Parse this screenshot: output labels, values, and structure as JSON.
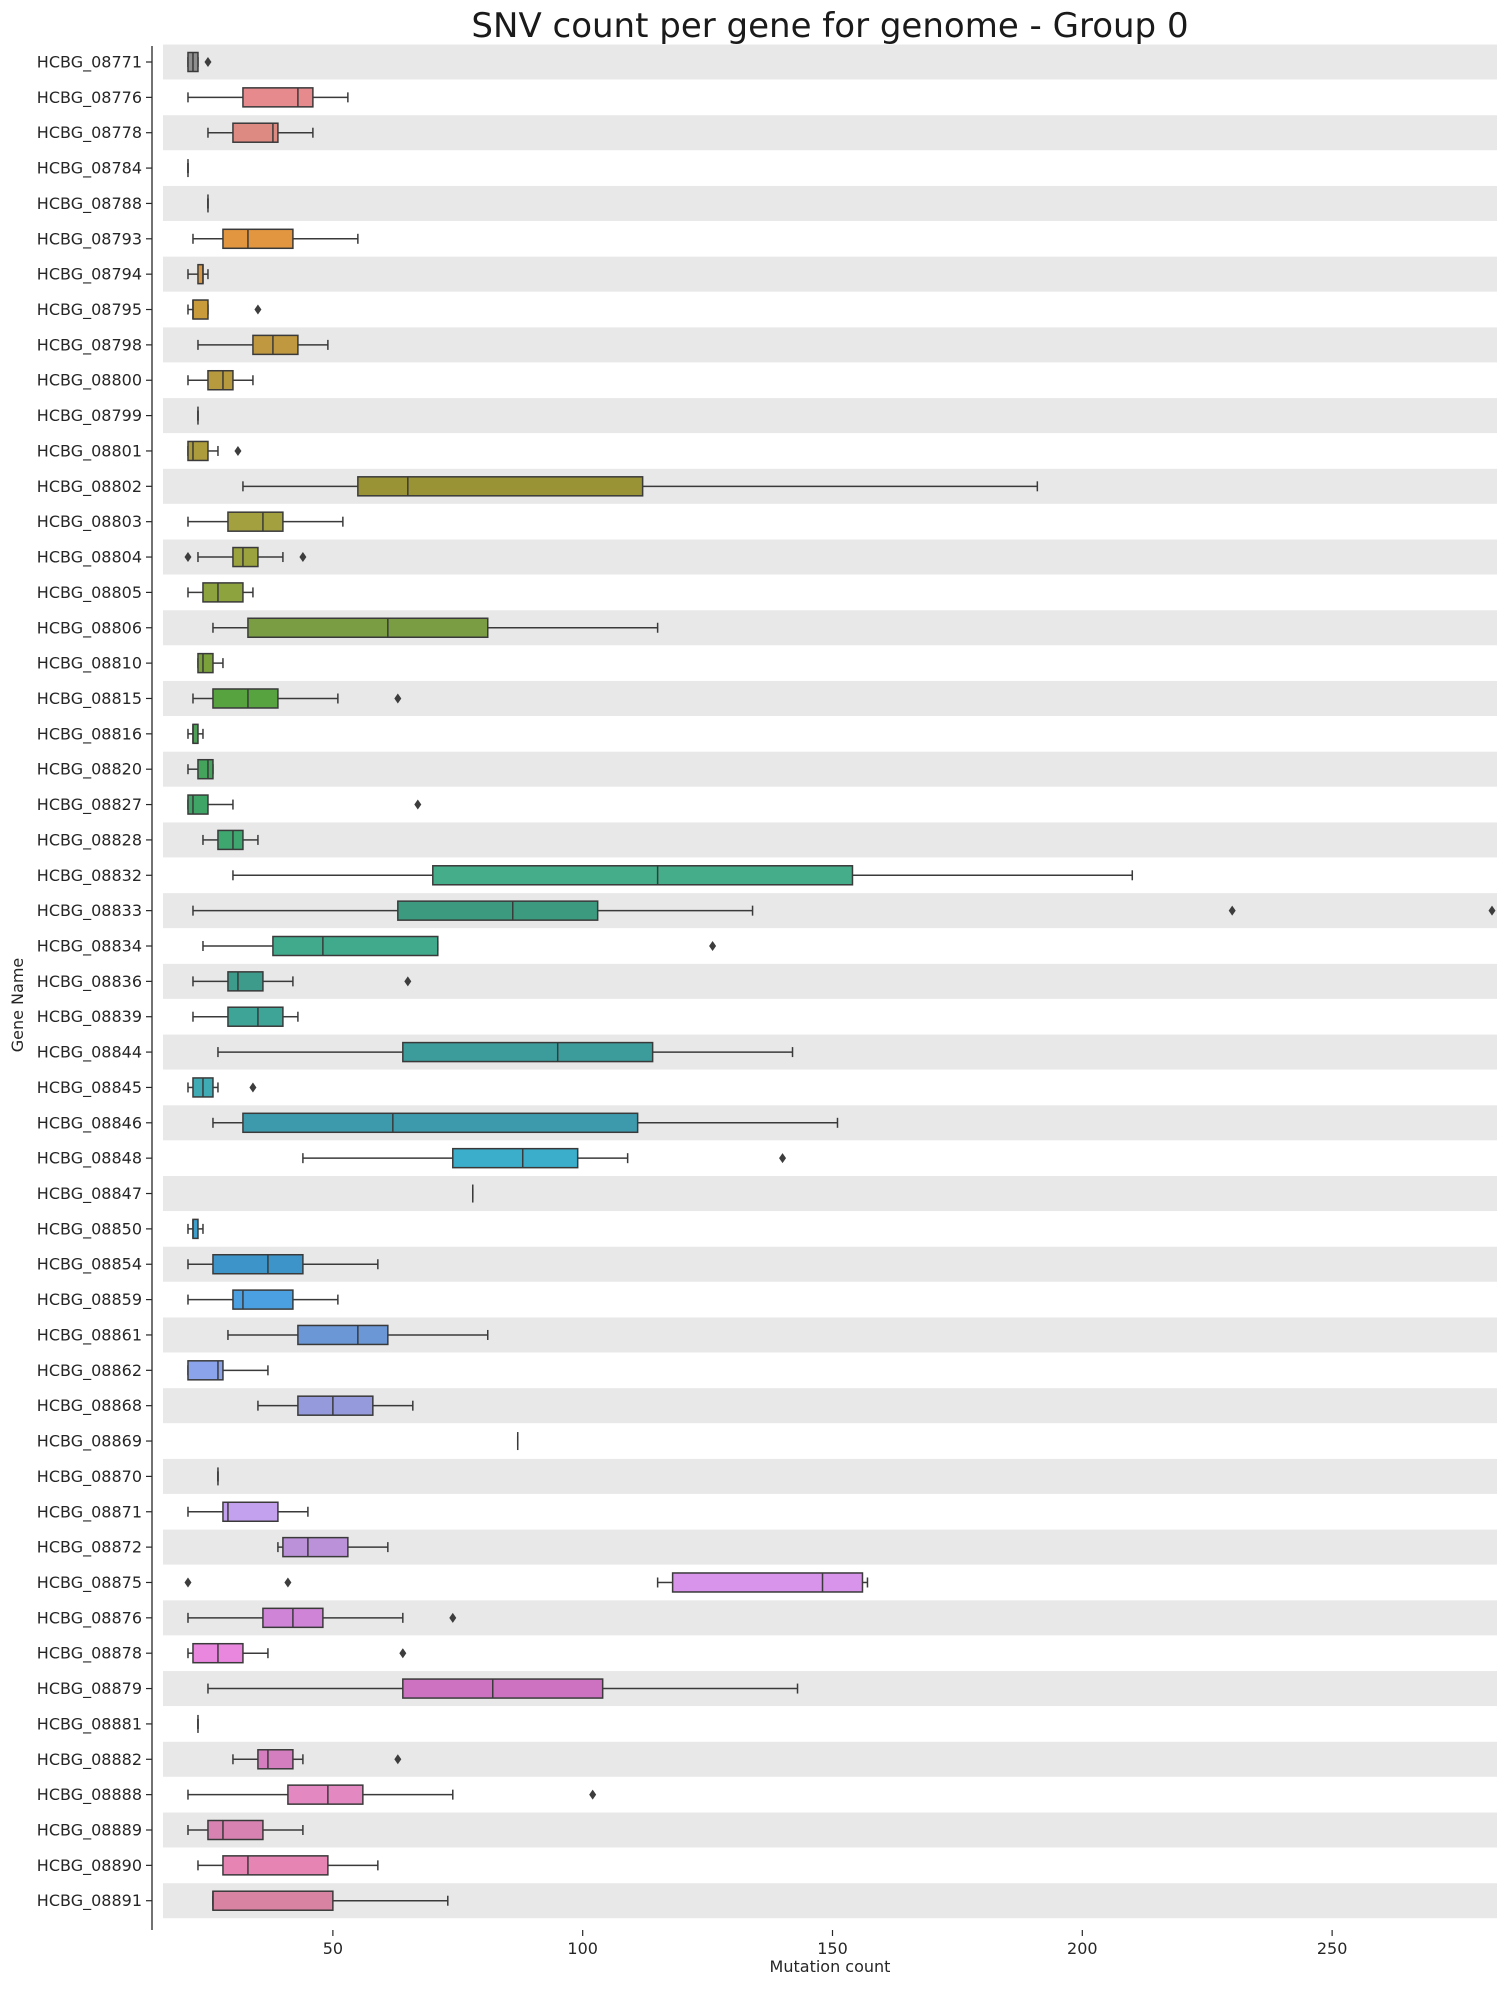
{
  "chart_data": {
    "type": "boxplot",
    "orientation": "horizontal",
    "title": "SNV count per gene for genome - Group 0",
    "xlabel": "Mutation count",
    "ylabel": "Gene Name",
    "xlim": [
      16,
      283
    ],
    "xticks": [
      50,
      100,
      150,
      200,
      250
    ],
    "row_stripes": true,
    "genes": [
      {
        "name": "HCBG_08771",
        "min": 21,
        "q1": 21,
        "median": 22,
        "q3": 23,
        "max": 23,
        "outliers": [
          25
        ],
        "color": "#8f8f8f"
      },
      {
        "name": "HCBG_08776",
        "min": 21,
        "q1": 32,
        "median": 43,
        "q3": 46,
        "max": 53,
        "outliers": [],
        "color": "#e78a8e"
      },
      {
        "name": "HCBG_08778",
        "min": 25,
        "q1": 30,
        "median": 38,
        "q3": 39,
        "max": 46,
        "outliers": [],
        "color": "#dc8a82"
      },
      {
        "name": "HCBG_08784",
        "min": 21,
        "q1": 21,
        "median": 21,
        "q3": 21,
        "max": 21,
        "outliers": [],
        "color": "#d68a7a"
      },
      {
        "name": "HCBG_08788",
        "min": 25,
        "q1": 25,
        "median": 25,
        "q3": 25,
        "max": 25,
        "outliers": [],
        "color": "#d88f69"
      },
      {
        "name": "HCBG_08793",
        "min": 22,
        "q1": 28,
        "median": 33,
        "q3": 42,
        "max": 55,
        "outliers": [],
        "color": "#e29640"
      },
      {
        "name": "HCBG_08794",
        "min": 21,
        "q1": 23,
        "median": 24,
        "q3": 24,
        "max": 25,
        "outliers": [],
        "color": "#d7963f"
      },
      {
        "name": "HCBG_08795",
        "min": 21,
        "q1": 22,
        "median": 22,
        "q3": 25,
        "max": 25,
        "outliers": [
          35
        ],
        "color": "#c99b3a"
      },
      {
        "name": "HCBG_08798",
        "min": 23,
        "q1": 34,
        "median": 38,
        "q3": 43,
        "max": 49,
        "outliers": [],
        "color": "#bf9840"
      },
      {
        "name": "HCBG_08800",
        "min": 21,
        "q1": 25,
        "median": 28,
        "q3": 30,
        "max": 34,
        "outliers": [],
        "color": "#b79a3e"
      },
      {
        "name": "HCBG_08799",
        "min": 23,
        "q1": 23,
        "median": 23,
        "q3": 23,
        "max": 23,
        "outliers": [],
        "color": "#b09b3b"
      },
      {
        "name": "HCBG_08801",
        "min": 21,
        "q1": 21,
        "median": 22,
        "q3": 25,
        "max": 27,
        "outliers": [
          31
        ],
        "color": "#ad9c3b"
      },
      {
        "name": "HCBG_08802",
        "min": 32,
        "q1": 55,
        "median": 65,
        "q3": 112,
        "max": 191,
        "outliers": [],
        "color": "#999336"
      },
      {
        "name": "HCBG_08803",
        "min": 21,
        "q1": 29,
        "median": 36,
        "q3": 40,
        "max": 52,
        "outliers": [],
        "color": "#a3a13f"
      },
      {
        "name": "HCBG_08804",
        "min": 23,
        "q1": 30,
        "median": 32,
        "q3": 35,
        "max": 40,
        "outliers": [
          21,
          44
        ],
        "color": "#9aa33e"
      },
      {
        "name": "HCBG_08805",
        "min": 21,
        "q1": 24,
        "median": 27,
        "q3": 32,
        "max": 34,
        "outliers": [],
        "color": "#8ca33e"
      },
      {
        "name": "HCBG_08806",
        "min": 26,
        "q1": 33,
        "median": 61,
        "q3": 81,
        "max": 115,
        "outliers": [],
        "color": "#7a9c42"
      },
      {
        "name": "HCBG_08810",
        "min": 23,
        "q1": 23,
        "median": 24,
        "q3": 26,
        "max": 28,
        "outliers": [],
        "color": "#7ba23a"
      },
      {
        "name": "HCBG_08815",
        "min": 22,
        "q1": 26,
        "median": 33,
        "q3": 39,
        "max": 51,
        "outliers": [
          63
        ],
        "color": "#57a33f"
      },
      {
        "name": "HCBG_08816",
        "min": 21,
        "q1": 22,
        "median": 22,
        "q3": 23,
        "max": 24,
        "outliers": [],
        "color": "#4f9f59"
      },
      {
        "name": "HCBG_08820",
        "min": 21,
        "q1": 23,
        "median": 25,
        "q3": 26,
        "max": 26,
        "outliers": [],
        "color": "#45a45c"
      },
      {
        "name": "HCBG_08827",
        "min": 21,
        "q1": 21,
        "median": 22,
        "q3": 25,
        "max": 30,
        "outliers": [
          67
        ],
        "color": "#3fa566"
      },
      {
        "name": "HCBG_08828",
        "min": 24,
        "q1": 27,
        "median": 30,
        "q3": 32,
        "max": 35,
        "outliers": [],
        "color": "#3ea66f"
      },
      {
        "name": "HCBG_08832",
        "min": 30,
        "q1": 70,
        "median": 115,
        "q3": 154,
        "max": 210,
        "outliers": [],
        "color": "#46ad8a"
      },
      {
        "name": "HCBG_08833",
        "min": 22,
        "q1": 63,
        "median": 86,
        "q3": 103,
        "max": 134,
        "outliers": [
          230,
          282
        ],
        "color": "#3c9b7f"
      },
      {
        "name": "HCBG_08834",
        "min": 24,
        "q1": 38,
        "median": 48,
        "q3": 71,
        "max": 71,
        "outliers": [
          126
        ],
        "color": "#41aa8d"
      },
      {
        "name": "HCBG_08836",
        "min": 22,
        "q1": 29,
        "median": 31,
        "q3": 36,
        "max": 42,
        "outliers": [
          65
        ],
        "color": "#3c9b8a"
      },
      {
        "name": "HCBG_08839",
        "min": 22,
        "q1": 29,
        "median": 35,
        "q3": 40,
        "max": 43,
        "outliers": [],
        "color": "#3da497"
      },
      {
        "name": "HCBG_08844",
        "min": 27,
        "q1": 64,
        "median": 95,
        "q3": 114,
        "max": 142,
        "outliers": [],
        "color": "#3c9c9b"
      },
      {
        "name": "HCBG_08845",
        "min": 21,
        "q1": 22,
        "median": 24,
        "q3": 26,
        "max": 27,
        "outliers": [
          34
        ],
        "color": "#3fabb4"
      },
      {
        "name": "HCBG_08846",
        "min": 26,
        "q1": 32,
        "median": 62,
        "q3": 111,
        "max": 151,
        "outliers": [],
        "color": "#3c9aac"
      },
      {
        "name": "HCBG_08848",
        "min": 44,
        "q1": 74,
        "median": 88,
        "q3": 99,
        "max": 109,
        "outliers": [
          140
        ],
        "color": "#3aaecb"
      },
      {
        "name": "HCBG_08847",
        "min": 78,
        "q1": 78,
        "median": 78,
        "q3": 78,
        "max": 78,
        "outliers": [],
        "color": "#3aa9cd"
      },
      {
        "name": "HCBG_08850",
        "min": 21,
        "q1": 22,
        "median": 22,
        "q3": 23,
        "max": 24,
        "outliers": [],
        "color": "#3f9fcc"
      },
      {
        "name": "HCBG_08854",
        "min": 21,
        "q1": 26,
        "median": 37,
        "q3": 44,
        "max": 59,
        "outliers": [],
        "color": "#3d94c8"
      },
      {
        "name": "HCBG_08859",
        "min": 21,
        "q1": 30,
        "median": 32,
        "q3": 42,
        "max": 51,
        "outliers": [],
        "color": "#4aa0e0"
      },
      {
        "name": "HCBG_08861",
        "min": 29,
        "q1": 43,
        "median": 55,
        "q3": 61,
        "max": 81,
        "outliers": [],
        "color": "#6b97d6"
      },
      {
        "name": "HCBG_08862",
        "min": 21,
        "q1": 21,
        "median": 27,
        "q3": 28,
        "max": 37,
        "outliers": [],
        "color": "#8ba3ea"
      },
      {
        "name": "HCBG_08868",
        "min": 35,
        "q1": 43,
        "median": 50,
        "q3": 58,
        "max": 66,
        "outliers": [],
        "color": "#949adb"
      },
      {
        "name": "HCBG_08869",
        "min": 87,
        "q1": 87,
        "median": 87,
        "q3": 87,
        "max": 87,
        "outliers": [],
        "color": "#a59bea"
      },
      {
        "name": "HCBG_08870",
        "min": 27,
        "q1": 27,
        "median": 27,
        "q3": 27,
        "max": 27,
        "outliers": [],
        "color": "#b59cef"
      },
      {
        "name": "HCBG_08871",
        "min": 21,
        "q1": 28,
        "median": 29,
        "q3": 39,
        "max": 45,
        "outliers": [],
        "color": "#c3a1ee"
      },
      {
        "name": "HCBG_08872",
        "min": 39,
        "q1": 40,
        "median": 45,
        "q3": 53,
        "max": 61,
        "outliers": [],
        "color": "#bb92da"
      },
      {
        "name": "HCBG_08875",
        "min": 115,
        "q1": 118,
        "median": 148,
        "q3": 156,
        "max": 157,
        "outliers": [
          21,
          41
        ],
        "color": "#d794ea"
      },
      {
        "name": "HCBG_08876",
        "min": 21,
        "q1": 36,
        "median": 42,
        "q3": 48,
        "max": 64,
        "outliers": [
          74
        ],
        "color": "#cf84d7"
      },
      {
        "name": "HCBG_08878",
        "min": 21,
        "q1": 22,
        "median": 27,
        "q3": 32,
        "max": 37,
        "outliers": [
          64
        ],
        "color": "#e986de"
      },
      {
        "name": "HCBG_08879",
        "min": 25,
        "q1": 64,
        "median": 82,
        "q3": 104,
        "max": 143,
        "outliers": [],
        "color": "#cd72c0"
      },
      {
        "name": "HCBG_08881",
        "min": 23,
        "q1": 23,
        "median": 23,
        "q3": 23,
        "max": 23,
        "outliers": [],
        "color": "#d785c5"
      },
      {
        "name": "HCBG_08882",
        "min": 30,
        "q1": 35,
        "median": 37,
        "q3": 42,
        "max": 44,
        "outliers": [
          63
        ],
        "color": "#d47ec0"
      },
      {
        "name": "HCBG_08888",
        "min": 21,
        "q1": 41,
        "median": 49,
        "q3": 56,
        "max": 74,
        "outliers": [
          102
        ],
        "color": "#e388c1"
      },
      {
        "name": "HCBG_08889",
        "min": 21,
        "q1": 25,
        "median": 28,
        "q3": 36,
        "max": 44,
        "outliers": [],
        "color": "#d882b2"
      },
      {
        "name": "HCBG_08890",
        "min": 23,
        "q1": 28,
        "median": 33,
        "q3": 49,
        "max": 59,
        "outliers": [],
        "color": "#e685b3"
      },
      {
        "name": "HCBG_08891",
        "min": 26,
        "q1": 26,
        "median": 26,
        "q3": 50,
        "max": 73,
        "outliers": [],
        "color": "#d883a2"
      }
    ]
  }
}
